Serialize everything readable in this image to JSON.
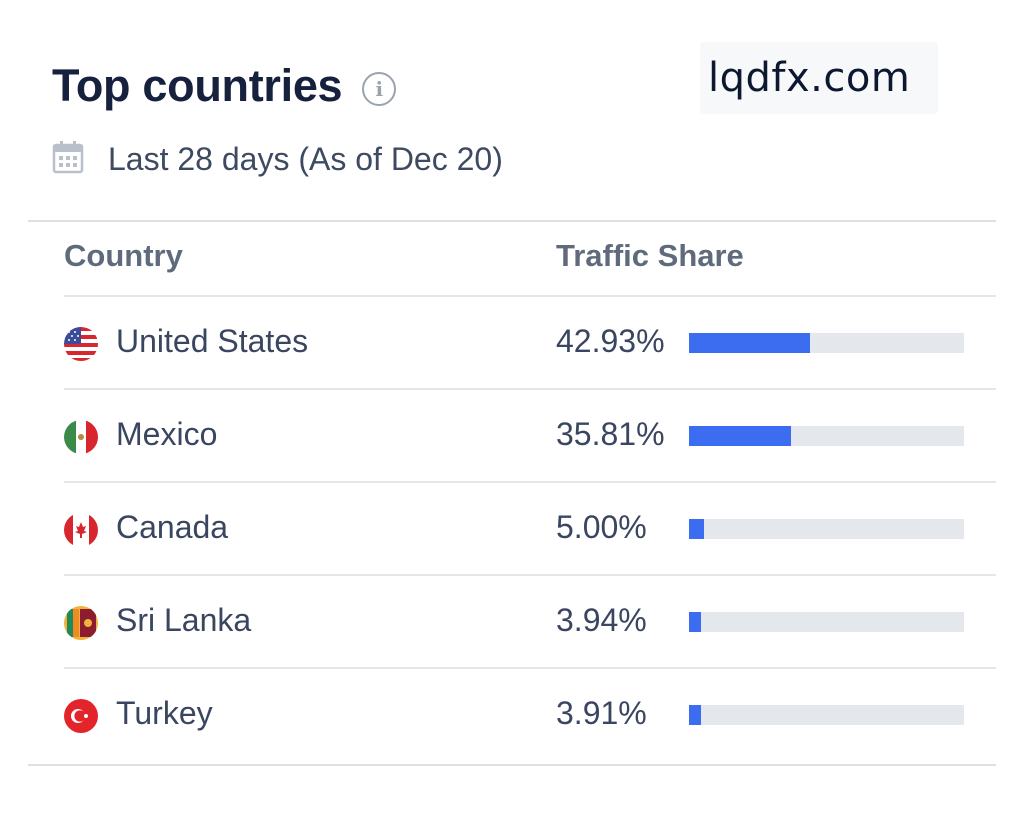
{
  "header": {
    "title": "Top countries",
    "info_icon": "info-icon",
    "watermark": "lqdfx.com"
  },
  "subtitle": {
    "icon": "calendar-icon",
    "text": "Last 28 days (As of Dec 20)"
  },
  "table": {
    "columns": {
      "country": "Country",
      "traffic_share": "Traffic Share"
    },
    "rows": [
      {
        "country": "United States",
        "share_text": "42.93%",
        "share_value": 42.93,
        "bar_fraction": 0.44,
        "flag": "flag-us-icon"
      },
      {
        "country": "Mexico",
        "share_text": "35.81%",
        "share_value": 35.81,
        "bar_fraction": 0.37,
        "flag": "flag-mexico-icon"
      },
      {
        "country": "Canada",
        "share_text": "5.00%",
        "share_value": 5.0,
        "bar_fraction": 0.055,
        "flag": "flag-canada-icon"
      },
      {
        "country": "Sri Lanka",
        "share_text": "3.94%",
        "share_value": 3.94,
        "bar_fraction": 0.043,
        "flag": "flag-sri-lanka-icon"
      },
      {
        "country": "Turkey",
        "share_text": "3.91%",
        "share_value": 3.91,
        "bar_fraction": 0.043,
        "flag": "flag-turkey-icon"
      }
    ]
  },
  "colors": {
    "bar_fill": "#3c6cf0",
    "bar_track": "#e4e7eb",
    "title": "#15213d"
  }
}
